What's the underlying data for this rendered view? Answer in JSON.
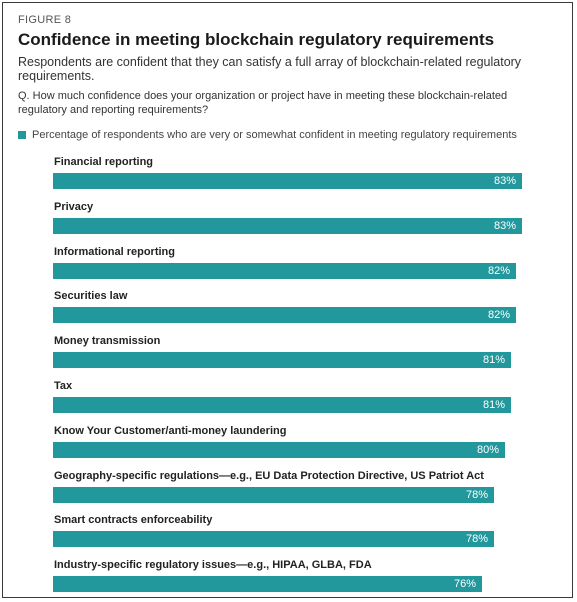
{
  "figure_label": "FIGURE 8",
  "title": "Confidence in meeting blockchain regulatory requirements",
  "subtitle": "Respondents are confident that they can satisfy a full array of blockchain-related regulatory requirements.",
  "question": "Q. How much confidence does your organization or project have in meeting these blockchain-related regulatory and reporting requirements?",
  "legend_label": "Percentage of respondents who are very or somewhat confident in meeting regulatory requirements",
  "colors": {
    "bar": "#23989c"
  },
  "chart_data": {
    "type": "bar",
    "orientation": "horizontal",
    "categories": [
      "Financial reporting",
      "Privacy",
      "Informational reporting",
      "Securities law",
      "Money transmission",
      "Tax",
      "Know Your Customer/anti-money laundering",
      "Geography-specific regulations—e.g., EU Data Protection Directive, US Patriot Act",
      "Smart contracts enforceability",
      "Industry-specific regulatory issues—e.g., HIPAA, GLBA, FDA"
    ],
    "values": [
      83,
      83,
      82,
      82,
      81,
      81,
      80,
      78,
      78,
      76
    ],
    "value_labels": [
      "83%",
      "83%",
      "82%",
      "82%",
      "81%",
      "81%",
      "80%",
      "78%",
      "78%",
      "76%"
    ],
    "legend": "top-left",
    "grid": false
  }
}
